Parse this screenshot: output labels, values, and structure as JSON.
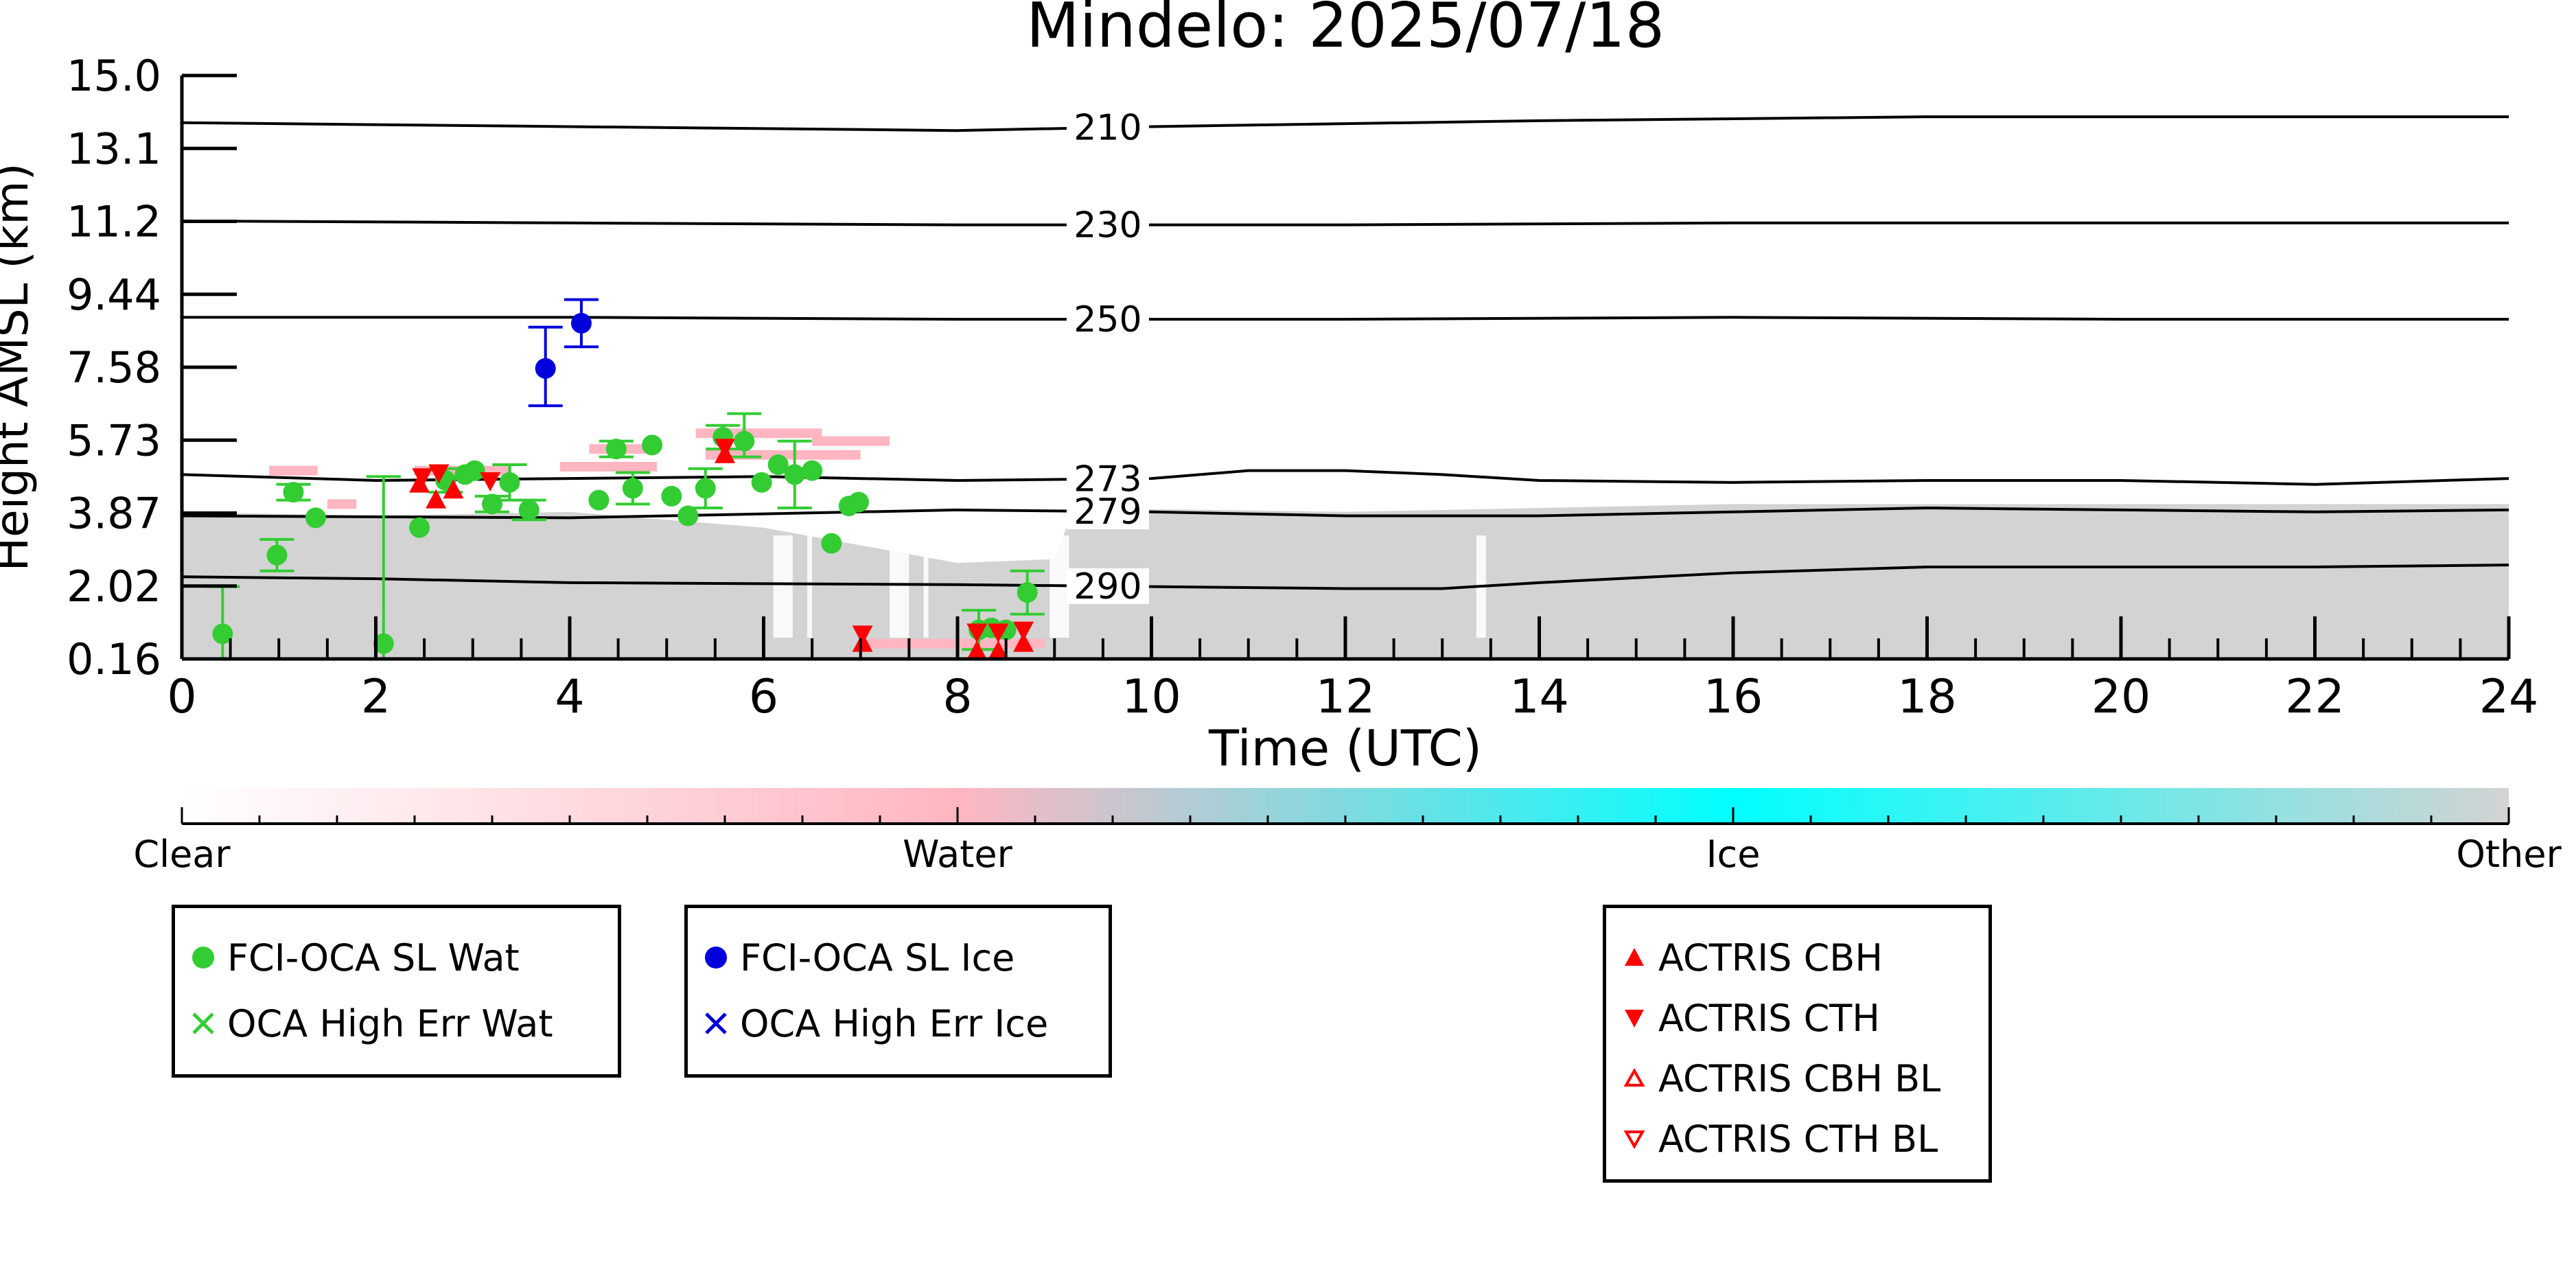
{
  "chart_data": {
    "type": "scatter",
    "title": "Mindelo: 2025/07/18",
    "xlabel": "Time (UTC)",
    "ylabel": "Height AMSL (km)",
    "xlim": [
      0,
      24
    ],
    "xticks": [
      0,
      2,
      4,
      6,
      8,
      10,
      12,
      14,
      16,
      18,
      20,
      22,
      24
    ],
    "ylim": [
      0.16,
      15.0
    ],
    "yticks": [
      "0.16",
      "2.02",
      "3.87",
      "5.73",
      "7.58",
      "9.44",
      "11.2",
      "13.1",
      "15.0"
    ],
    "grid": false,
    "background_classification": {
      "description_colors": {
        "clear": "#ffffff",
        "water": "#ffb6c1",
        "ice": "#00ffff",
        "other": "#d3d3d3"
      },
      "other_layer_top_km": [
        [
          0,
          3.9
        ],
        [
          2,
          3.8
        ],
        [
          4,
          3.9
        ],
        [
          6,
          3.5
        ],
        [
          8,
          2.6
        ],
        [
          9,
          2.7
        ],
        [
          9.2,
          4.0
        ],
        [
          12,
          3.9
        ],
        [
          14,
          4.0
        ],
        [
          16,
          4.1
        ],
        [
          18,
          4.1
        ],
        [
          20,
          4.1
        ],
        [
          22,
          4.1
        ],
        [
          24,
          4.1
        ]
      ],
      "water_patches_km": [
        {
          "t0": 0.9,
          "t1": 1.4,
          "z": 4.95
        },
        {
          "t0": 1.5,
          "t1": 1.8,
          "z": 4.1
        },
        {
          "t0": 2.4,
          "t1": 3.4,
          "z": 4.95
        },
        {
          "t0": 3.9,
          "t1": 4.9,
          "z": 5.05
        },
        {
          "t0": 4.2,
          "t1": 4.8,
          "z": 5.5
        },
        {
          "t0": 5.3,
          "t1": 6.6,
          "z": 5.9
        },
        {
          "t0": 5.4,
          "t1": 7.0,
          "z": 5.35
        },
        {
          "t0": 6.5,
          "t1": 7.3,
          "z": 5.7
        },
        {
          "t0": 7.0,
          "t1": 8.9,
          "z": 0.55
        }
      ]
    },
    "isotherms": [
      {
        "label": "210",
        "points": [
          [
            0,
            13.8
          ],
          [
            4,
            13.7
          ],
          [
            8,
            13.6
          ],
          [
            10,
            13.7
          ],
          [
            14,
            13.85
          ],
          [
            18,
            13.95
          ],
          [
            24,
            13.95
          ]
        ]
      },
      {
        "label": "230",
        "points": [
          [
            0,
            11.3
          ],
          [
            4,
            11.25
          ],
          [
            8,
            11.2
          ],
          [
            12,
            11.2
          ],
          [
            16,
            11.25
          ],
          [
            20,
            11.25
          ],
          [
            24,
            11.25
          ]
        ]
      },
      {
        "label": "250",
        "points": [
          [
            0,
            8.85
          ],
          [
            4,
            8.85
          ],
          [
            8,
            8.8
          ],
          [
            12,
            8.8
          ],
          [
            16,
            8.85
          ],
          [
            20,
            8.8
          ],
          [
            24,
            8.8
          ]
        ]
      },
      {
        "label": "273",
        "points": [
          [
            0,
            4.85
          ],
          [
            2,
            4.7
          ],
          [
            4,
            4.75
          ],
          [
            6,
            4.8
          ],
          [
            8,
            4.7
          ],
          [
            10,
            4.75
          ],
          [
            11,
            4.95
          ],
          [
            12,
            4.95
          ],
          [
            13,
            4.85
          ],
          [
            14,
            4.7
          ],
          [
            16,
            4.65
          ],
          [
            18,
            4.7
          ],
          [
            20,
            4.7
          ],
          [
            22,
            4.6
          ],
          [
            24,
            4.75
          ]
        ]
      },
      {
        "label": "279",
        "points": [
          [
            0,
            3.8
          ],
          [
            4,
            3.75
          ],
          [
            8,
            3.95
          ],
          [
            10,
            3.9
          ],
          [
            12,
            3.8
          ],
          [
            14,
            3.8
          ],
          [
            16,
            3.9
          ],
          [
            18,
            4.0
          ],
          [
            20,
            3.95
          ],
          [
            22,
            3.9
          ],
          [
            24,
            3.95
          ]
        ]
      },
      {
        "label": "290",
        "points": [
          [
            0,
            2.25
          ],
          [
            2,
            2.2
          ],
          [
            4,
            2.1
          ],
          [
            8,
            2.05
          ],
          [
            10,
            2.0
          ],
          [
            12,
            1.95
          ],
          [
            13,
            1.95
          ],
          [
            14,
            2.1
          ],
          [
            16,
            2.35
          ],
          [
            18,
            2.5
          ],
          [
            20,
            2.5
          ],
          [
            22,
            2.5
          ],
          [
            24,
            2.55
          ]
        ]
      }
    ],
    "series": [
      {
        "name": "FCI-OCA SL Wat",
        "color": "#33cc33",
        "marker": "circle",
        "points": [
          {
            "x": 0.42,
            "y": 0.8,
            "err": [
              0.0,
              2.0
            ]
          },
          {
            "x": 0.98,
            "y": 2.8,
            "err": [
              2.4,
              3.2
            ]
          },
          {
            "x": 1.15,
            "y": 4.4,
            "err": [
              4.2,
              4.6
            ]
          },
          {
            "x": 1.38,
            "y": 3.75
          },
          {
            "x": 2.08,
            "y": 0.55,
            "err": [
              0.0,
              4.8
            ]
          },
          {
            "x": 2.45,
            "y": 3.5
          },
          {
            "x": 2.72,
            "y": 4.7,
            "err": [
              4.4,
              5.0
            ]
          },
          {
            "x": 2.92,
            "y": 4.85
          },
          {
            "x": 3.02,
            "y": 4.95
          },
          {
            "x": 3.2,
            "y": 4.1,
            "err": [
              3.9,
              4.3
            ]
          },
          {
            "x": 3.38,
            "y": 4.65,
            "err": [
              4.2,
              5.1
            ]
          },
          {
            "x": 3.58,
            "y": 3.95,
            "err": [
              3.7,
              4.2
            ]
          },
          {
            "x": 4.3,
            "y": 4.2
          },
          {
            "x": 4.48,
            "y": 5.5,
            "err": [
              5.3,
              5.7
            ]
          },
          {
            "x": 4.65,
            "y": 4.5,
            "err": [
              4.1,
              4.9
            ]
          },
          {
            "x": 4.85,
            "y": 5.6
          },
          {
            "x": 5.05,
            "y": 4.3
          },
          {
            "x": 5.22,
            "y": 3.8
          },
          {
            "x": 5.4,
            "y": 4.5,
            "err": [
              4.0,
              5.0
            ]
          },
          {
            "x": 5.58,
            "y": 5.8,
            "err": [
              5.5,
              6.1
            ]
          },
          {
            "x": 5.8,
            "y": 5.7,
            "err": [
              5.3,
              6.4
            ]
          },
          {
            "x": 5.98,
            "y": 4.65
          },
          {
            "x": 6.15,
            "y": 5.1
          },
          {
            "x": 6.32,
            "y": 4.85,
            "err": [
              4.0,
              5.7
            ]
          },
          {
            "x": 6.5,
            "y": 4.95
          },
          {
            "x": 6.7,
            "y": 3.1
          },
          {
            "x": 6.88,
            "y": 4.05
          },
          {
            "x": 6.98,
            "y": 4.15
          },
          {
            "x": 8.22,
            "y": 0.9,
            "err": [
              0.4,
              1.4
            ]
          },
          {
            "x": 8.35,
            "y": 0.95
          },
          {
            "x": 8.5,
            "y": 0.9
          },
          {
            "x": 8.72,
            "y": 1.85,
            "err": [
              1.3,
              2.4
            ]
          }
        ]
      },
      {
        "name": "OCA High Err Wat",
        "color": "#33cc33",
        "marker": "x",
        "points": []
      },
      {
        "name": "FCI-OCA SL Ice",
        "color": "#0000dd",
        "marker": "circle",
        "points": [
          {
            "x": 3.75,
            "y": 7.55,
            "err": [
              6.6,
              8.6
            ]
          },
          {
            "x": 4.12,
            "y": 8.7,
            "err": [
              8.1,
              9.3
            ]
          }
        ]
      },
      {
        "name": "OCA High Err Ice",
        "color": "#0000dd",
        "marker": "x",
        "points": []
      },
      {
        "name": "ACTRIS CBH",
        "color": "#ff0000",
        "marker": "triangle-up-filled",
        "points": [
          {
            "x": 2.45,
            "y": 4.6
          },
          {
            "x": 2.62,
            "y": 4.2
          },
          {
            "x": 2.8,
            "y": 4.45
          },
          {
            "x": 5.6,
            "y": 5.35
          },
          {
            "x": 7.02,
            "y": 0.55
          },
          {
            "x": 8.2,
            "y": 0.35
          },
          {
            "x": 8.42,
            "y": 0.35
          },
          {
            "x": 8.68,
            "y": 0.55
          }
        ]
      },
      {
        "name": "ACTRIS CTH",
        "color": "#ff0000",
        "marker": "triangle-down-filled",
        "points": [
          {
            "x": 2.48,
            "y": 4.8
          },
          {
            "x": 2.65,
            "y": 4.9
          },
          {
            "x": 3.18,
            "y": 4.7
          },
          {
            "x": 5.6,
            "y": 5.55
          },
          {
            "x": 7.02,
            "y": 0.8
          },
          {
            "x": 8.2,
            "y": 0.85
          },
          {
            "x": 8.42,
            "y": 0.85
          },
          {
            "x": 8.68,
            "y": 0.9
          }
        ]
      },
      {
        "name": "ACTRIS CBH BL",
        "color": "#ff0000",
        "marker": "triangle-up-open",
        "points": []
      },
      {
        "name": "ACTRIS CTH BL",
        "color": "#ff0000",
        "marker": "triangle-down-open",
        "points": []
      }
    ],
    "colorbar": {
      "labels": [
        "Clear",
        "Water",
        "Ice",
        "Other"
      ],
      "stops": [
        "#ffffff",
        "#ffb6c1",
        "#00ffff",
        "#d3d3d3"
      ]
    },
    "legend_groups": [
      [
        "FCI-OCA SL Wat",
        "OCA High Err Wat"
      ],
      [
        "FCI-OCA SL Ice",
        "OCA High Err Ice"
      ],
      [
        "ACTRIS CBH",
        "ACTRIS CTH",
        "ACTRIS CBH BL",
        "ACTRIS CTH BL"
      ]
    ]
  }
}
